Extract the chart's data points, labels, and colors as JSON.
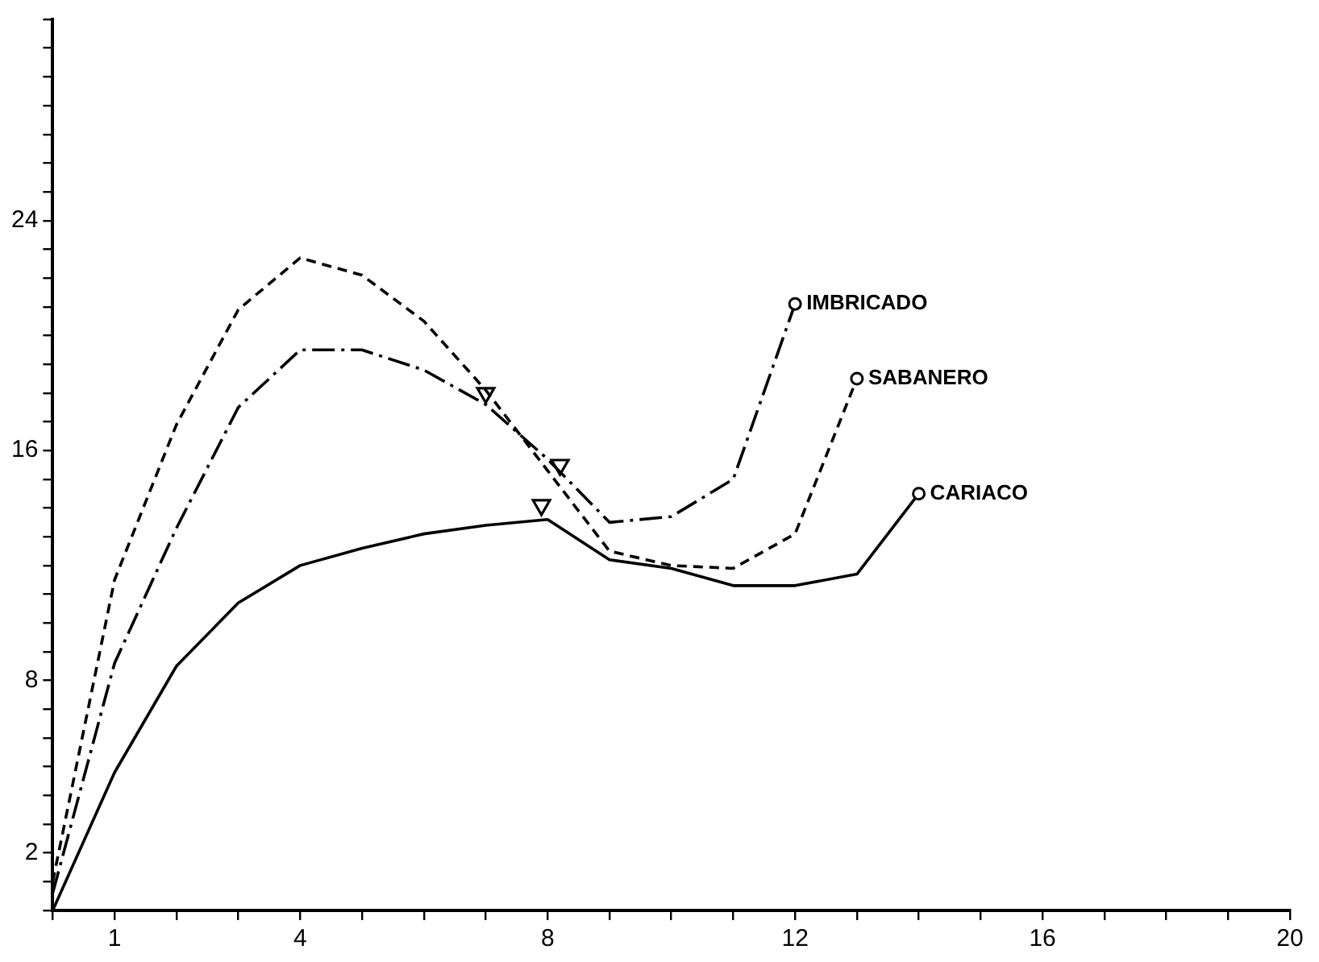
{
  "chart_data": {
    "type": "line",
    "x": [
      0,
      1,
      2,
      3,
      4,
      5,
      6,
      7,
      8,
      9,
      10,
      11,
      12,
      13,
      14
    ],
    "series": [
      {
        "name": "CARIACO",
        "color": "#000000",
        "line_style": "solid",
        "values": [
          0,
          4.8,
          8.5,
          10.7,
          12.0,
          12.6,
          13.1,
          13.4,
          13.6,
          12.2,
          11.9,
          11.3,
          11.3,
          11.7,
          14.5
        ]
      },
      {
        "name": "IMBRICADO",
        "color": "#000000",
        "line_style": "dashdot",
        "values": [
          0.6,
          8.6,
          13.3,
          17.5,
          19.5,
          19.5,
          18.8,
          17.6,
          15.7,
          13.5,
          13.7,
          15.0,
          21.1,
          null,
          null
        ]
      },
      {
        "name": "SABANERO",
        "color": "#000000",
        "line_style": "dashed",
        "values": [
          1.0,
          11.5,
          16.9,
          20.9,
          22.7,
          22.1,
          20.5,
          18.1,
          15.3,
          12.5,
          12.0,
          11.9,
          13.1,
          18.5,
          null
        ]
      },
      {
        "type": "scatter",
        "color": "#000000",
        "marker": "triangle",
        "x": [
          7.0,
          8.2,
          7.9
        ],
        "values": [
          18.0,
          15.5,
          14.1
        ]
      }
    ],
    "xlim": [
      0,
      20
    ],
    "xticks": [
      {
        "value": 0,
        "label": null
      },
      1,
      {
        "value": 2,
        "label": null
      },
      {
        "value": 3,
        "label": null
      },
      4,
      {
        "value": 5,
        "label": null
      },
      {
        "value": 6,
        "label": null
      },
      {
        "value": 7,
        "label": null
      },
      8,
      {
        "value": 9,
        "label": null
      },
      {
        "value": 10,
        "label": null
      },
      {
        "value": 11,
        "label": null
      },
      12,
      {
        "value": 13,
        "label": null
      },
      {
        "value": 14,
        "label": null
      },
      {
        "value": 15,
        "label": null
      },
      16,
      {
        "value": 17,
        "label": null
      },
      {
        "value": 18,
        "label": null
      },
      {
        "value": 19,
        "label": null
      },
      20
    ],
    "ylim": [
      0,
      31
    ],
    "yticks": [
      {
        "value": 0,
        "label": null
      },
      {
        "value": 1,
        "label": null
      },
      2,
      {
        "value": 3,
        "label": null
      },
      {
        "value": 4,
        "label": null
      },
      {
        "value": 5,
        "label": null
      },
      {
        "value": 6,
        "label": null
      },
      {
        "value": 7,
        "label": null
      },
      8,
      {
        "value": 9,
        "label": null
      },
      {
        "value": 10,
        "label": null
      },
      {
        "value": 11,
        "label": null
      },
      {
        "value": 12,
        "label": null
      },
      {
        "value": 13,
        "label": null
      },
      {
        "value": 14,
        "label": null
      },
      {
        "value": 15,
        "label": null
      },
      16,
      {
        "value": 17,
        "label": null
      },
      {
        "value": 18,
        "label": null
      },
      {
        "value": 19,
        "label": null
      },
      {
        "value": 20,
        "label": null
      },
      {
        "value": 21,
        "label": null
      },
      {
        "value": 22,
        "label": null
      },
      {
        "value": 23,
        "label": null
      },
      24,
      {
        "value": 25,
        "label": null
      },
      {
        "value": 26,
        "label": null
      },
      {
        "value": 27,
        "label": null
      },
      {
        "value": 28,
        "label": null
      },
      {
        "value": 29,
        "label": null
      },
      {
        "value": 30,
        "label": null
      },
      {
        "value": 31,
        "label": null
      }
    ],
    "grid": false,
    "legend": false
  }
}
